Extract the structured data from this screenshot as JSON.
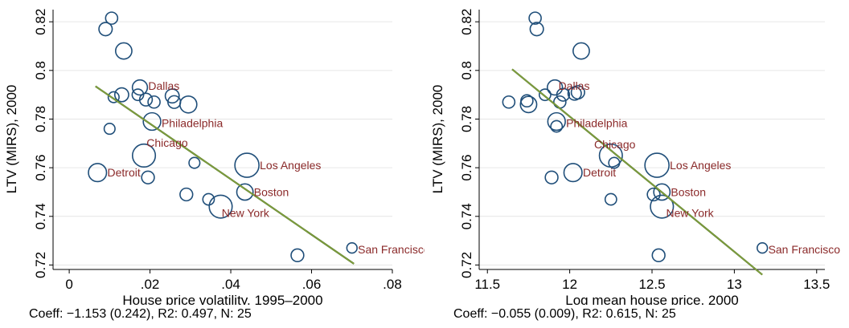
{
  "chart_data": [
    {
      "type": "scatter",
      "xlabel": "House price volatility, 1995–2000",
      "ylabel": "LTV (MIRS), 2000",
      "xlim": [
        -0.004,
        0.08
      ],
      "ylim": [
        0.7185,
        0.825
      ],
      "xticks": [
        0,
        0.02,
        0.04,
        0.06,
        0.08
      ],
      "xtick_labels": [
        "0",
        ".02",
        ".04",
        ".06",
        ".08"
      ],
      "yticks": [
        0.72,
        0.74,
        0.76,
        0.78,
        0.8,
        0.82
      ],
      "ytick_labels": [
        "0.72",
        "0.74",
        "0.76",
        "0.78",
        "0.8",
        "0.82"
      ],
      "grid": true,
      "marker_color": "#1f4e79",
      "fit_line_color": "#5b7f2a",
      "label_color": "#8b2a2a",
      "fit_line": {
        "x": [
          0.0065,
          0.0705
        ],
        "y": [
          0.7935,
          0.7205
        ]
      },
      "points": [
        {
          "x": 0.0105,
          "y": 0.8215,
          "size": 1.0
        },
        {
          "x": 0.009,
          "y": 0.817,
          "size": 1.1
        },
        {
          "x": 0.0135,
          "y": 0.808,
          "size": 1.35
        },
        {
          "x": 0.0175,
          "y": 0.793,
          "size": 1.25,
          "label": "Dallas"
        },
        {
          "x": 0.011,
          "y": 0.789,
          "size": 0.9
        },
        {
          "x": 0.013,
          "y": 0.79,
          "size": 1.15
        },
        {
          "x": 0.017,
          "y": 0.79,
          "size": 0.95
        },
        {
          "x": 0.019,
          "y": 0.788,
          "size": 1.05
        },
        {
          "x": 0.021,
          "y": 0.787,
          "size": 1.0
        },
        {
          "x": 0.0255,
          "y": 0.7895,
          "size": 1.15
        },
        {
          "x": 0.026,
          "y": 0.787,
          "size": 1.05
        },
        {
          "x": 0.0295,
          "y": 0.786,
          "size": 1.4
        },
        {
          "x": 0.01,
          "y": 0.776,
          "size": 0.9
        },
        {
          "x": 0.0205,
          "y": 0.779,
          "size": 1.45,
          "label": "Philadelphia"
        },
        {
          "x": 0.0185,
          "y": 0.765,
          "size": 1.9,
          "label": "Chicago"
        },
        {
          "x": 0.007,
          "y": 0.758,
          "size": 1.5,
          "label": "Detroit"
        },
        {
          "x": 0.0195,
          "y": 0.756,
          "size": 1.05
        },
        {
          "x": 0.031,
          "y": 0.762,
          "size": 0.9
        },
        {
          "x": 0.044,
          "y": 0.761,
          "size": 2.0,
          "label": "Los Angeles"
        },
        {
          "x": 0.029,
          "y": 0.749,
          "size": 1.05
        },
        {
          "x": 0.0345,
          "y": 0.747,
          "size": 0.95
        },
        {
          "x": 0.0375,
          "y": 0.744,
          "size": 1.9,
          "label": "New York"
        },
        {
          "x": 0.0435,
          "y": 0.75,
          "size": 1.35,
          "label": "Boston"
        },
        {
          "x": 0.0565,
          "y": 0.724,
          "size": 1.05
        },
        {
          "x": 0.07,
          "y": 0.727,
          "size": 0.85,
          "label": "San Francisco"
        }
      ],
      "footnote": "Coeff: −1.153 (0.242), R2: 0.497, N: 25"
    },
    {
      "type": "scatter",
      "xlabel": "Log mean house price, 2000",
      "ylabel": "LTV (MIRS), 2000",
      "xlim": [
        11.45,
        13.55
      ],
      "ylim": [
        0.7185,
        0.825
      ],
      "xticks": [
        11.5,
        12,
        12.5,
        13,
        13.5
      ],
      "xtick_labels": [
        "11.5",
        "12",
        "12.5",
        "13",
        "13.5"
      ],
      "yticks": [
        0.72,
        0.74,
        0.76,
        0.78,
        0.8,
        0.82
      ],
      "ytick_labels": [
        "0.72",
        "0.74",
        "0.76",
        "0.78",
        "0.8",
        "0.82"
      ],
      "grid": true,
      "marker_color": "#1f4e79",
      "fit_line_color": "#5b7f2a",
      "label_color": "#8b2a2a",
      "fit_line": {
        "x": [
          11.65,
          13.17
        ],
        "y": [
          0.8005,
          0.716
        ]
      },
      "points": [
        {
          "x": 11.79,
          "y": 0.8215,
          "size": 1.0
        },
        {
          "x": 11.8,
          "y": 0.817,
          "size": 1.1
        },
        {
          "x": 12.07,
          "y": 0.808,
          "size": 1.35
        },
        {
          "x": 11.91,
          "y": 0.793,
          "size": 1.25,
          "label": "Dallas"
        },
        {
          "x": 11.63,
          "y": 0.787,
          "size": 1.0
        },
        {
          "x": 11.74,
          "y": 0.7875,
          "size": 1.0
        },
        {
          "x": 11.75,
          "y": 0.786,
          "size": 1.35
        },
        {
          "x": 11.85,
          "y": 0.79,
          "size": 0.95
        },
        {
          "x": 11.94,
          "y": 0.787,
          "size": 1.0
        },
        {
          "x": 11.96,
          "y": 0.79,
          "size": 1.05
        },
        {
          "x": 12.03,
          "y": 0.7905,
          "size": 1.1
        },
        {
          "x": 12.05,
          "y": 0.791,
          "size": 1.1
        },
        {
          "x": 11.92,
          "y": 0.779,
          "size": 1.45,
          "label": "Philadelphia"
        },
        {
          "x": 11.92,
          "y": 0.777,
          "size": 0.95
        },
        {
          "x": 12.25,
          "y": 0.765,
          "size": 1.9,
          "label": "Chicago"
        },
        {
          "x": 12.27,
          "y": 0.762,
          "size": 0.9
        },
        {
          "x": 12.53,
          "y": 0.761,
          "size": 2.0,
          "label": "Los Angeles"
        },
        {
          "x": 12.02,
          "y": 0.758,
          "size": 1.5,
          "label": "Detroit"
        },
        {
          "x": 11.89,
          "y": 0.756,
          "size": 1.05
        },
        {
          "x": 12.25,
          "y": 0.747,
          "size": 0.95
        },
        {
          "x": 12.51,
          "y": 0.749,
          "size": 1.05
        },
        {
          "x": 12.56,
          "y": 0.75,
          "size": 1.35,
          "label": "Boston"
        },
        {
          "x": 12.56,
          "y": 0.744,
          "size": 1.9,
          "label": "New York"
        },
        {
          "x": 12.54,
          "y": 0.724,
          "size": 1.05
        },
        {
          "x": 13.17,
          "y": 0.727,
          "size": 0.85,
          "label": "San Francisco"
        }
      ],
      "footnote": "Coeff: −0.055 (0.009), R2: 0.615, N: 25"
    }
  ]
}
